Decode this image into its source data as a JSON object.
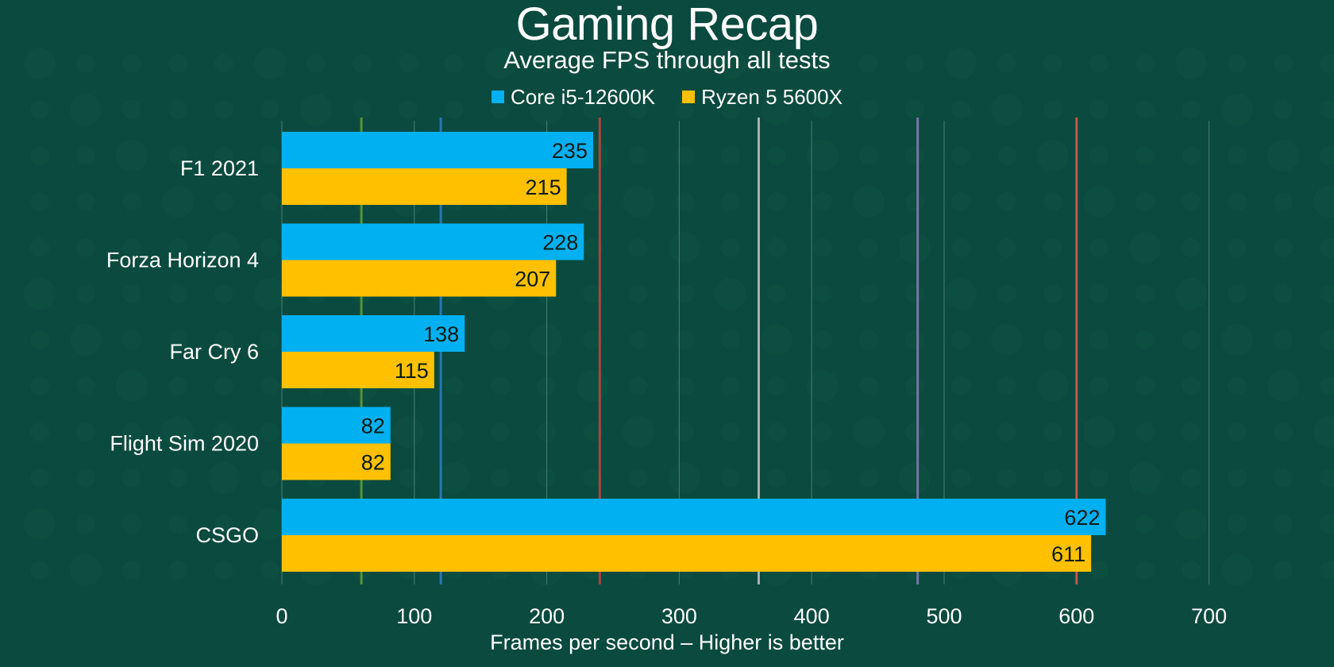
{
  "chart_data": {
    "type": "bar",
    "orientation": "horizontal",
    "title": "Gaming Recap",
    "subtitle": "Average FPS through all tests",
    "xlabel": "Frames per second – Higher is better",
    "ylabel": "",
    "categories": [
      "F1 2021",
      "Forza Horizon 4",
      "Far Cry 6",
      "Flight Sim 2020",
      "CSGO"
    ],
    "series": [
      {
        "name": "Core i5-12600K",
        "color": "#00b0f0",
        "values": [
          235,
          228,
          138,
          82,
          622
        ]
      },
      {
        "name": "Ryzen 5 5600X",
        "color": "#ffc000",
        "values": [
          215,
          207,
          115,
          82,
          611
        ]
      }
    ],
    "xlim": [
      0,
      700
    ],
    "xticks": [
      0,
      100,
      200,
      300,
      400,
      500,
      600,
      700
    ],
    "grid": true,
    "legend_position": "top-center",
    "refresh_markers": [
      {
        "value": 60,
        "color": "#5c9a3c"
      },
      {
        "value": 120,
        "color": "#2a7fb5"
      },
      {
        "value": 240,
        "color": "#c0443b"
      },
      {
        "value": 360,
        "color": "#b8bcb8"
      },
      {
        "value": 480,
        "color": "#8878b8"
      },
      {
        "value": 600,
        "color": "#e0504a"
      }
    ]
  },
  "colors": {
    "background": "#0b4a3e",
    "pattern": "#0e5242",
    "grid": "#5f8a80",
    "text": "#ffffff",
    "bar_label": "#0a1a14"
  }
}
